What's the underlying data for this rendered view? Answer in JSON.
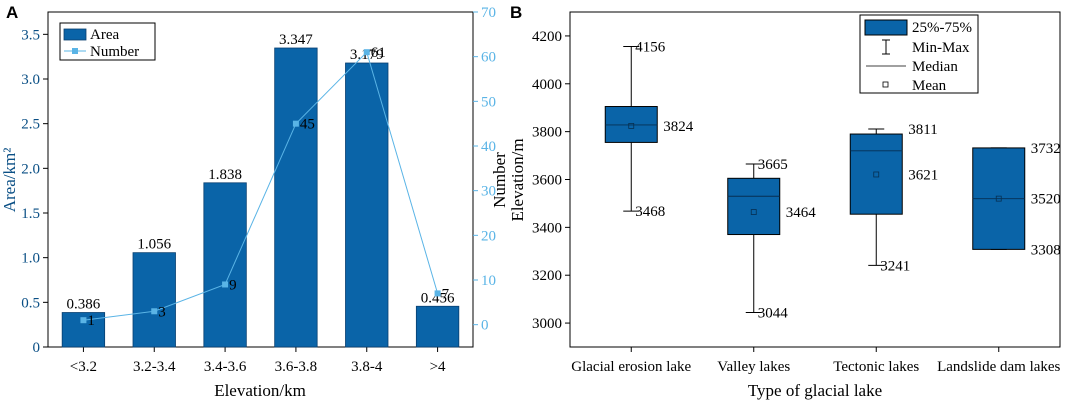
{
  "chart_data": [
    {
      "panel_label": "A",
      "type": "bar",
      "xlabel": "Elevation/km",
      "ylabel": "Area/km²",
      "y2label": "Number",
      "categories": [
        "<3.2",
        "3.2-3.4",
        "3.4-3.6",
        "3.6-3.8",
        "3.8-4",
        ">4"
      ],
      "ylim": [
        0,
        3.75
      ],
      "yticks": [
        "0",
        "0.5",
        "1.0",
        "1.5",
        "2.0",
        "2.5",
        "3.0",
        "3.5"
      ],
      "y2lim": [
        -5,
        70
      ],
      "y2ticks": [
        "0",
        "10",
        "20",
        "30",
        "40",
        "50",
        "60",
        "70"
      ],
      "series": [
        {
          "name": "Area",
          "type": "bar",
          "values": [
            0.386,
            1.056,
            1.838,
            3.347,
            3.179,
            0.456
          ],
          "labels": [
            "0.386",
            "1.056",
            "1.838",
            "3.347",
            "3.179",
            "0.456"
          ],
          "color": "#0a64a8"
        },
        {
          "name": "Number",
          "type": "line",
          "axis": "right",
          "values": [
            1,
            3,
            9,
            45,
            61,
            7
          ],
          "labels": [
            "1",
            "3",
            "9",
            "45",
            "61",
            "7"
          ],
          "color": "#5ab4e6"
        }
      ],
      "legend": {
        "position": "top-left",
        "entries": [
          "Area",
          "Number"
        ]
      }
    },
    {
      "panel_label": "B",
      "type": "box",
      "xlabel": "Type of glacial lake",
      "ylabel": "Elevation/m",
      "categories": [
        "Glacial erosion lake",
        "Valley lakes",
        "Tectonic lakes",
        "Landslide dam lakes"
      ],
      "ylim": [
        2900,
        4300
      ],
      "yticks": [
        "3000",
        "3200",
        "3400",
        "3600",
        "3800",
        "4000",
        "4200"
      ],
      "boxes": [
        {
          "min": 3468,
          "q1": 3755,
          "median": 3828,
          "q3": 3905,
          "max": 4156,
          "mean": 3824,
          "labels": [
            "4156",
            "3824",
            "3468"
          ]
        },
        {
          "min": 3044,
          "q1": 3370,
          "median": 3530,
          "q3": 3605,
          "max": 3665,
          "mean": 3464,
          "labels": [
            "3665",
            "3464",
            "3044"
          ]
        },
        {
          "min": 3241,
          "q1": 3455,
          "median": 3720,
          "q3": 3790,
          "max": 3811,
          "mean": 3621,
          "labels": [
            "3811",
            "3621",
            "3241"
          ]
        },
        {
          "min": 3308,
          "q1": 3308,
          "median": 3520,
          "q3": 3732,
          "max": 3732,
          "mean": 3520,
          "labels": [
            "3732",
            "3520",
            "3308"
          ]
        }
      ],
      "color": "#0a64a8",
      "legend": {
        "position": "top-right",
        "entries": [
          "25%-75%",
          "Min-Max",
          "Median",
          "Mean"
        ]
      }
    }
  ]
}
